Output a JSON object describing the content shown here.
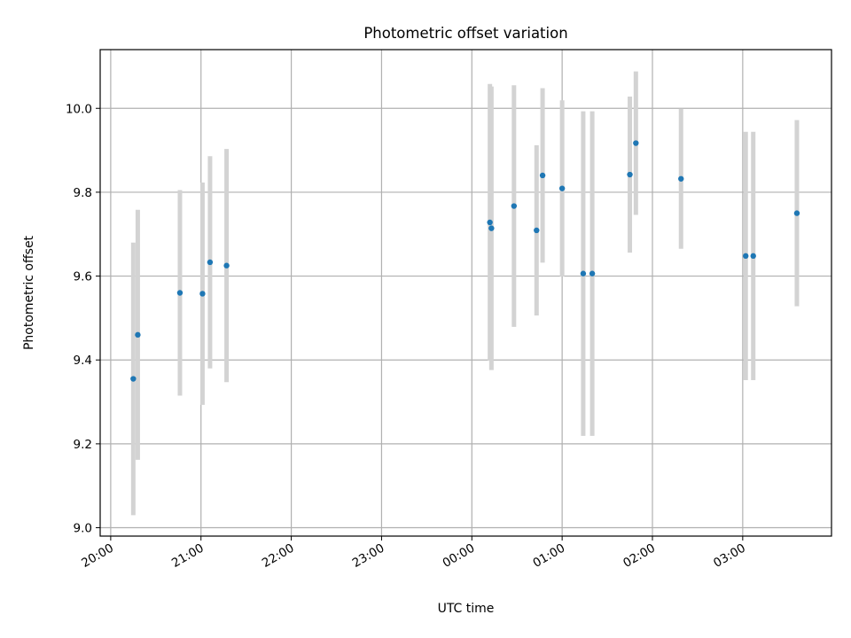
{
  "chart_data": {
    "type": "scatter",
    "title": "Photometric offset variation",
    "xlabel": "UTC time",
    "ylabel": "Photometric offset",
    "grid": true,
    "xlim": [
      "19:53",
      "03:59"
    ],
    "ylim": [
      8.98,
      10.14
    ],
    "x_ticks": [
      "20:00",
      "21:00",
      "22:00",
      "23:00",
      "00:00",
      "01:00",
      "02:00",
      "03:00"
    ],
    "y_ticks": [
      "9.0",
      "9.2",
      "9.4",
      "9.6",
      "9.8",
      "10.0"
    ],
    "colors": {
      "point": "#1f77b4",
      "errorbar": "#d3d3d3",
      "grid": "#b0b0b0"
    },
    "points": [
      {
        "x": "20:15",
        "y": 9.355,
        "err": 0.325
      },
      {
        "x": "20:18",
        "y": 9.46,
        "err": 0.298
      },
      {
        "x": "20:46",
        "y": 9.56,
        "err": 0.245
      },
      {
        "x": "21:01",
        "y": 9.558,
        "err": 0.265
      },
      {
        "x": "21:06",
        "y": 9.633,
        "err": 0.253
      },
      {
        "x": "21:17",
        "y": 9.625,
        "err": 0.278
      },
      {
        "x": "00:12",
        "y": 9.728,
        "err": 0.33
      },
      {
        "x": "00:13",
        "y": 9.714,
        "err": 0.338
      },
      {
        "x": "00:28",
        "y": 9.767,
        "err": 0.288
      },
      {
        "x": "00:43",
        "y": 9.709,
        "err": 0.203
      },
      {
        "x": "00:47",
        "y": 9.84,
        "err": 0.208
      },
      {
        "x": "01:00",
        "y": 9.809,
        "err": 0.21
      },
      {
        "x": "01:14",
        "y": 9.606,
        "err": 0.387
      },
      {
        "x": "01:20",
        "y": 9.606,
        "err": 0.387
      },
      {
        "x": "01:45",
        "y": 9.842,
        "err": 0.186
      },
      {
        "x": "01:49",
        "y": 9.917,
        "err": 0.171
      },
      {
        "x": "02:19",
        "y": 9.832,
        "err": 0.167
      },
      {
        "x": "03:02",
        "y": 9.648,
        "err": 0.296
      },
      {
        "x": "03:07",
        "y": 9.648,
        "err": 0.296
      },
      {
        "x": "03:36",
        "y": 9.75,
        "err": 0.222
      }
    ]
  }
}
